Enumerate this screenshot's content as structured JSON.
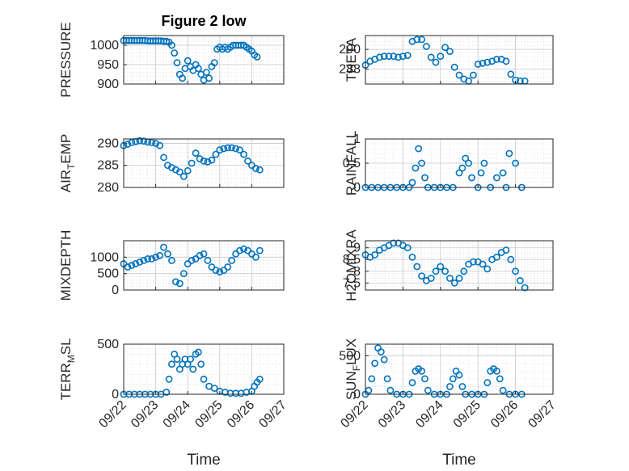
{
  "chart_data": [
    {
      "type": "scatter",
      "title": "Figure 2 low",
      "ylabel": "PRESSURE",
      "ylim": [
        900,
        1025
      ],
      "yticks": [
        900,
        950,
        1000
      ],
      "marker": "circle-open",
      "color": "#0072BD",
      "xlim": [
        "2020-09-22",
        "2020-09-27"
      ],
      "series": [
        {
          "x": [
            "09-22 00:00",
            "09-22 02:00",
            "09-22 04:00",
            "09-22 06:00",
            "09-22 08:00",
            "09-22 10:00",
            "09-22 12:00",
            "09-22 14:00",
            "09-22 16:00",
            "09-22 18:00",
            "09-22 20:00",
            "09-22 22:00",
            "09-23 00:00",
            "09-23 02:00",
            "09-23 04:00",
            "09-23 06:00",
            "09-23 08:00",
            "09-23 10:00",
            "09-23 12:00",
            "09-23 14:00",
            "09-23 16:00",
            "09-23 18:00",
            "09-23 20:00",
            "09-23 22:00",
            "09-24 00:00",
            "09-24 02:00",
            "09-24 04:00",
            "09-24 06:00",
            "09-24 08:00",
            "09-24 10:00",
            "09-24 12:00",
            "09-24 14:00",
            "09-24 16:00",
            "09-24 18:00",
            "09-24 20:00",
            "09-24 22:00",
            "09-25 00:00",
            "09-25 02:00",
            "09-25 04:00",
            "09-25 06:00",
            "09-25 08:00",
            "09-25 10:00",
            "09-25 12:00",
            "09-25 14:00",
            "09-25 16:00",
            "09-25 18:00",
            "09-25 20:00",
            "09-25 22:00",
            "09-26 00:00",
            "09-26 02:00",
            "09-26 04:00"
          ],
          "y": [
            1012,
            1012,
            1012,
            1012,
            1012,
            1012,
            1012,
            1012,
            1012,
            1011,
            1011,
            1011,
            1011,
            1011,
            1011,
            1010,
            1010,
            1008,
            1000,
            980,
            955,
            925,
            915,
            940,
            960,
            945,
            935,
            950,
            940,
            925,
            910,
            930,
            915,
            945,
            955,
            990,
            995,
            990,
            995,
            990,
            995,
            1000,
            1000,
            1000,
            1000,
            1000,
            995,
            990,
            985,
            975,
            970
          ]
        }
      ]
    },
    {
      "type": "scatter",
      "title": "",
      "ylabel": "THETA",
      "ylim": [
        286.5,
        291.4
      ],
      "yticks": [
        288,
        290
      ],
      "color": "#0072BD",
      "series": [
        {
          "x": [
            "09-22 00:00",
            "09-22 03:00",
            "09-22 06:00",
            "09-22 09:00",
            "09-22 12:00",
            "09-22 15:00",
            "09-22 18:00",
            "09-22 21:00",
            "09-23 00:00",
            "09-23 03:00",
            "09-23 06:00",
            "09-23 09:00",
            "09-23 12:00",
            "09-23 15:00",
            "09-23 18:00",
            "09-23 21:00",
            "09-24 00:00",
            "09-24 03:00",
            "09-24 06:00",
            "09-24 09:00",
            "09-24 12:00",
            "09-24 15:00",
            "09-24 18:00",
            "09-24 21:00",
            "09-25 00:00",
            "09-25 03:00",
            "09-25 06:00",
            "09-25 09:00",
            "09-25 12:00",
            "09-25 15:00",
            "09-25 18:00",
            "09-25 21:00",
            "09-26 00:00",
            "09-26 03:00",
            "09-26 06:00"
          ],
          "y": [
            288.4,
            288.8,
            289.0,
            289.2,
            289.3,
            289.3,
            289.3,
            289.2,
            289.3,
            289.4,
            290.8,
            291.0,
            291.0,
            290.3,
            289.2,
            288.7,
            289.3,
            290.2,
            289.8,
            288.2,
            287.4,
            287.0,
            286.8,
            287.4,
            288.5,
            288.6,
            288.7,
            288.8,
            289.0,
            289.0,
            288.8,
            287.5,
            286.9,
            286.8,
            286.8
          ]
        }
      ]
    },
    {
      "type": "scatter",
      "title": "",
      "ylabel": "AIR_TEMP",
      "ylim": [
        280,
        291
      ],
      "yticks": [
        280,
        285,
        290
      ],
      "color": "#0072BD",
      "series": [
        {
          "x": [
            "09-22 00:00",
            "09-22 03:00",
            "09-22 06:00",
            "09-22 09:00",
            "09-22 12:00",
            "09-22 15:00",
            "09-22 18:00",
            "09-22 21:00",
            "09-23 00:00",
            "09-23 03:00",
            "09-23 06:00",
            "09-23 09:00",
            "09-23 12:00",
            "09-23 15:00",
            "09-23 18:00",
            "09-23 21:00",
            "09-24 00:00",
            "09-24 03:00",
            "09-24 06:00",
            "09-24 09:00",
            "09-24 12:00",
            "09-24 15:00",
            "09-24 18:00",
            "09-24 21:00",
            "09-25 00:00",
            "09-25 03:00",
            "09-25 06:00",
            "09-25 09:00",
            "09-25 12:00",
            "09-25 15:00",
            "09-25 18:00",
            "09-25 21:00",
            "09-26 00:00",
            "09-26 03:00",
            "09-26 06:00"
          ],
          "y": [
            289.5,
            289.8,
            290.2,
            290.4,
            290.6,
            290.5,
            290.3,
            290.2,
            290.0,
            289.5,
            286.8,
            285.0,
            284.5,
            284.0,
            283.5,
            282.5,
            283.8,
            285.5,
            287.8,
            286.5,
            286.0,
            285.8,
            286.2,
            287.5,
            288.5,
            288.8,
            289.0,
            289.0,
            288.8,
            288.5,
            287.5,
            286.0,
            285.0,
            284.3,
            284.0
          ]
        }
      ]
    },
    {
      "type": "scatter",
      "title": "",
      "ylabel": "RAINFALL",
      "ylim": [
        0,
        1
      ],
      "yticks": [
        0,
        0.5,
        1
      ],
      "color": "#0072BD",
      "series": [
        {
          "x": [
            "09-22 00:00",
            "09-22 04:00",
            "09-22 08:00",
            "09-22 12:00",
            "09-22 16:00",
            "09-22 20:00",
            "09-23 00:00",
            "09-23 04:00",
            "09-23 06:00",
            "09-23 08:00",
            "09-23 10:00",
            "09-23 12:00",
            "09-23 14:00",
            "09-23 16:00",
            "09-23 20:00",
            "09-24 00:00",
            "09-24 04:00",
            "09-24 08:00",
            "09-24 12:00",
            "09-24 14:00",
            "09-24 16:00",
            "09-24 18:00",
            "09-24 20:00",
            "09-25 00:00",
            "09-25 02:00",
            "09-25 04:00",
            "09-25 08:00",
            "09-25 12:00",
            "09-25 16:00",
            "09-25 18:00",
            "09-25 20:00",
            "09-26 00:00",
            "09-26 04:00"
          ],
          "y": [
            0,
            0,
            0,
            0,
            0,
            0,
            0,
            0,
            0.1,
            0.4,
            0.8,
            0.5,
            0.2,
            0,
            0,
            0,
            0,
            0,
            0.3,
            0.4,
            0.6,
            0.5,
            0.2,
            0,
            0.3,
            0.5,
            0,
            0.2,
            0.3,
            0,
            0.7,
            0.5,
            0
          ]
        }
      ]
    },
    {
      "type": "scatter",
      "title": "",
      "ylabel": "MIXDEPTH",
      "ylim": [
        0,
        1500
      ],
      "yticks": [
        0,
        500,
        1000
      ],
      "color": "#0072BD",
      "series": [
        {
          "x": [
            "09-22 00:00",
            "09-22 03:00",
            "09-22 06:00",
            "09-22 09:00",
            "09-22 12:00",
            "09-22 15:00",
            "09-22 18:00",
            "09-22 21:00",
            "09-23 00:00",
            "09-23 03:00",
            "09-23 06:00",
            "09-23 09:00",
            "09-23 12:00",
            "09-23 15:00",
            "09-23 18:00",
            "09-23 21:00",
            "09-24 00:00",
            "09-24 03:00",
            "09-24 06:00",
            "09-24 09:00",
            "09-24 12:00",
            "09-24 15:00",
            "09-24 18:00",
            "09-24 21:00",
            "09-25 00:00",
            "09-25 03:00",
            "09-25 06:00",
            "09-25 09:00",
            "09-25 12:00",
            "09-25 15:00",
            "09-25 18:00",
            "09-25 21:00",
            "09-26 00:00",
            "09-26 03:00",
            "09-26 06:00"
          ],
          "y": [
            800,
            700,
            750,
            800,
            850,
            900,
            950,
            950,
            1000,
            1050,
            1300,
            1100,
            900,
            250,
            200,
            500,
            800,
            900,
            950,
            1050,
            1100,
            900,
            700,
            600,
            550,
            600,
            700,
            900,
            1100,
            1200,
            1250,
            1200,
            1100,
            1000,
            1200
          ]
        }
      ]
    },
    {
      "type": "scatter",
      "title": "",
      "ylabel": "H2OMIXRA",
      "ylim": [
        7.2,
        9.3
      ],
      "yticks": [
        7.5,
        8,
        8.5,
        9
      ],
      "color": "#0072BD",
      "series": [
        {
          "x": [
            "09-22 00:00",
            "09-22 03:00",
            "09-22 06:00",
            "09-22 09:00",
            "09-22 12:00",
            "09-22 15:00",
            "09-22 18:00",
            "09-22 21:00",
            "09-23 00:00",
            "09-23 03:00",
            "09-23 06:00",
            "09-23 09:00",
            "09-23 12:00",
            "09-23 15:00",
            "09-23 18:00",
            "09-23 21:00",
            "09-24 00:00",
            "09-24 03:00",
            "09-24 06:00",
            "09-24 09:00",
            "09-24 12:00",
            "09-24 15:00",
            "09-24 18:00",
            "09-24 21:00",
            "09-25 00:00",
            "09-25 03:00",
            "09-25 06:00",
            "09-25 09:00",
            "09-25 12:00",
            "09-25 15:00",
            "09-25 18:00",
            "09-25 21:00",
            "09-26 00:00",
            "09-26 03:00",
            "09-26 06:00"
          ],
          "y": [
            8.7,
            8.6,
            8.7,
            8.9,
            9.0,
            9.1,
            9.2,
            9.2,
            9.1,
            9.0,
            8.6,
            8.2,
            7.8,
            7.6,
            7.7,
            8.0,
            8.2,
            8.0,
            7.7,
            7.5,
            7.7,
            8.0,
            8.3,
            8.4,
            8.4,
            8.3,
            8.1,
            8.5,
            8.6,
            8.8,
            8.9,
            8.5,
            8.0,
            7.6,
            7.3
          ]
        }
      ]
    },
    {
      "type": "scatter",
      "title": "",
      "ylabel": "TERR_MSL",
      "ylim": [
        0,
        500
      ],
      "yticks": [
        0,
        500
      ],
      "color": "#0072BD",
      "series": [
        {
          "x": [
            "09-22 00:00",
            "09-22 04:00",
            "09-22 08:00",
            "09-22 12:00",
            "09-22 16:00",
            "09-22 20:00",
            "09-23 00:00",
            "09-23 04:00",
            "09-23 08:00",
            "09-23 10:00",
            "09-23 12:00",
            "09-23 14:00",
            "09-23 16:00",
            "09-23 18:00",
            "09-23 20:00",
            "09-23 22:00",
            "09-24 00:00",
            "09-24 02:00",
            "09-24 04:00",
            "09-24 06:00",
            "09-24 08:00",
            "09-24 10:00",
            "09-24 12:00",
            "09-24 16:00",
            "09-24 20:00",
            "09-25 00:00",
            "09-25 04:00",
            "09-25 08:00",
            "09-25 12:00",
            "09-25 16:00",
            "09-25 20:00",
            "09-26 00:00",
            "09-26 02:00",
            "09-26 04:00",
            "09-26 06:00"
          ],
          "y": [
            0,
            0,
            0,
            0,
            0,
            0,
            0,
            0,
            20,
            150,
            300,
            400,
            350,
            250,
            300,
            350,
            300,
            350,
            250,
            400,
            420,
            300,
            150,
            80,
            60,
            30,
            20,
            10,
            10,
            10,
            20,
            30,
            80,
            120,
            150
          ]
        }
      ]
    },
    {
      "type": "scatter",
      "title": "",
      "ylabel": "SUN_FLUX",
      "ylim": [
        0,
        650
      ],
      "yticks": [
        0,
        500
      ],
      "color": "#0072BD",
      "series": [
        {
          "x": [
            "09-22 00:00",
            "09-22 02:00",
            "09-22 04:00",
            "09-22 06:00",
            "09-22 08:00",
            "09-22 10:00",
            "09-22 12:00",
            "09-22 14:00",
            "09-22 16:00",
            "09-22 20:00",
            "09-23 00:00",
            "09-23 04:00",
            "09-23 06:00",
            "09-23 08:00",
            "09-23 10:00",
            "09-23 12:00",
            "09-23 14:00",
            "09-23 16:00",
            "09-23 20:00",
            "09-24 00:00",
            "09-24 04:00",
            "09-24 06:00",
            "09-24 08:00",
            "09-24 10:00",
            "09-24 12:00",
            "09-24 14:00",
            "09-24 16:00",
            "09-24 20:00",
            "09-25 00:00",
            "09-25 04:00",
            "09-25 06:00",
            "09-25 08:00",
            "09-25 10:00",
            "09-25 12:00",
            "09-25 14:00",
            "09-25 16:00",
            "09-25 20:00",
            "09-26 00:00",
            "09-26 04:00"
          ],
          "y": [
            0,
            50,
            200,
            400,
            600,
            550,
            450,
            200,
            50,
            0,
            0,
            0,
            150,
            300,
            330,
            300,
            200,
            50,
            0,
            0,
            0,
            100,
            200,
            300,
            250,
            100,
            0,
            0,
            0,
            0,
            150,
            300,
            330,
            300,
            200,
            50,
            0,
            0,
            0
          ]
        }
      ]
    }
  ],
  "x_axis": {
    "ticks": [
      "09/22",
      "09/23",
      "09/24",
      "09/25",
      "09/26",
      "09/27"
    ],
    "label": "Time"
  }
}
